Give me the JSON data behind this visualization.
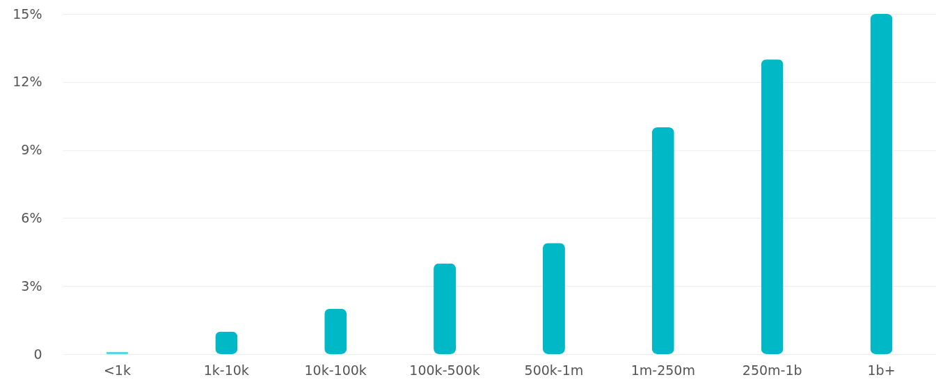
{
  "chart_data": {
    "type": "bar",
    "categories": [
      "<1k",
      "1k-10k",
      "10k-100k",
      "100k-500k",
      "500k-1m",
      "1m-250m",
      "250m-1b",
      "1b+"
    ],
    "values": [
      0.1,
      1.0,
      2.0,
      4.0,
      4.9,
      10.0,
      13.0,
      15.0
    ],
    "colors": [
      "#5fd4e0",
      "#00b8c6",
      "#00b8c6",
      "#00b8c6",
      "#00b8c6",
      "#00b8c6",
      "#00b8c6",
      "#00b8c6"
    ],
    "ylim": [
      0,
      15
    ],
    "yticks": [
      {
        "value": 0,
        "label": "0"
      },
      {
        "value": 3,
        "label": "3%"
      },
      {
        "value": 6,
        "label": "6%"
      },
      {
        "value": 9,
        "label": "9%"
      },
      {
        "value": 12,
        "label": "12%"
      },
      {
        "value": 15,
        "label": "15%"
      }
    ],
    "grid": "y"
  }
}
